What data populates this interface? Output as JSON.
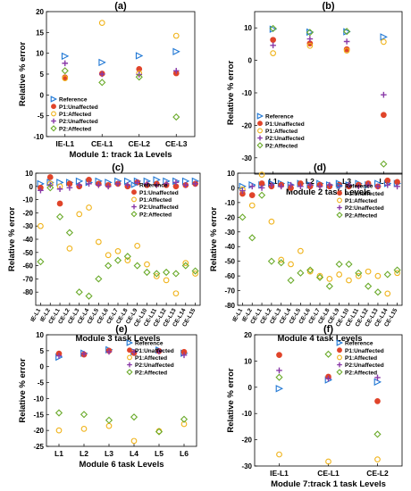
{
  "series_styles": {
    "Reference": {
      "shape": "triangle-right",
      "color": "#1f77d4",
      "fill": "none"
    },
    "P1:Unaffected": {
      "shape": "circle",
      "color": "#e0442a",
      "fill": "#e0442a"
    },
    "P1:Affected": {
      "shape": "circle",
      "color": "#f0b31a",
      "fill": "none"
    },
    "P2:Unaffected": {
      "shape": "plus",
      "color": "#8a3aa8",
      "fill": "none"
    },
    "P2:Affected": {
      "shape": "diamond",
      "color": "#6aaa2a",
      "fill": "none"
    }
  },
  "chart_data": [
    {
      "panel": "(a)",
      "type": "scatter",
      "xlabel": "Module 1: track 1a Levels",
      "ylabel": "Relative % error",
      "categories": [
        "IE-L1",
        "CE-L1",
        "CE-L2",
        "CE-L3"
      ],
      "ylim": [
        -10,
        20
      ],
      "yticks": [
        -10,
        -5,
        0,
        5,
        10,
        15,
        20
      ],
      "legend": "bottom-left",
      "tick_rotation": 0,
      "series": [
        {
          "name": "Reference",
          "values": [
            9.3,
            7.8,
            9.4,
            10.4
          ]
        },
        {
          "name": "P1:Unaffected",
          "values": [
            4.2,
            5.1,
            6.2,
            5.2
          ]
        },
        {
          "name": "P1:Affected",
          "values": [
            4.0,
            17.3,
            5.2,
            14.2
          ]
        },
        {
          "name": "P2:Unaffected",
          "values": [
            7.6,
            5.0,
            4.9,
            5.8
          ]
        },
        {
          "name": "P2:Affected",
          "values": [
            5.8,
            3.0,
            4.3,
            -5.3
          ]
        }
      ]
    },
    {
      "panel": "(b)",
      "type": "scatter",
      "xlabel": "Module 2 task Levels",
      "ylabel": "Relative % error",
      "categories": [
        "L1",
        "L2",
        "L3",
        "L4"
      ],
      "ylim": [
        -35,
        15
      ],
      "yticks": [
        -30,
        -20,
        -10,
        0,
        10
      ],
      "legend": "bottom-left",
      "tick_rotation": 0,
      "series": [
        {
          "name": "Reference",
          "values": [
            9.6,
            8.7,
            8.8,
            7.2
          ]
        },
        {
          "name": "P1:Unaffected",
          "values": [
            6.3,
            5.2,
            3.4,
            -16.8
          ]
        },
        {
          "name": "P1:Affected",
          "values": [
            2.2,
            4.5,
            3.0,
            5.7
          ]
        },
        {
          "name": "P2:Unaffected",
          "values": [
            4.6,
            6.6,
            5.8,
            -10.6
          ]
        },
        {
          "name": "P2:Affected",
          "values": [
            9.8,
            8.6,
            8.9,
            -31.9
          ]
        }
      ]
    },
    {
      "panel": "(c)",
      "type": "scatter",
      "xlabel": "Module 3 task Levels",
      "ylabel": "Relative % error",
      "categories": [
        "IE-L1",
        "IE-L2",
        "CE-L1",
        "CE-L2",
        "CE-L3",
        "CE-L4",
        "CE-L5",
        "CE-L6",
        "CE-L7",
        "CE-L8",
        "CE-L9",
        "CE-L10",
        "CE-L11",
        "CE-L12",
        "CE-L13",
        "CE-L14",
        "CE-L15"
      ],
      "ylim": [
        -90,
        10
      ],
      "yticks": [
        -80,
        -70,
        -60,
        -50,
        -40,
        -30,
        -20,
        -10,
        0,
        10
      ],
      "legend": "top-right",
      "tick_rotation": -60,
      "series": [
        {
          "name": "Reference",
          "values": [
            2,
            3,
            3,
            3,
            4,
            3,
            4,
            3,
            4,
            4,
            4,
            4,
            5,
            4,
            4,
            4,
            4
          ]
        },
        {
          "name": "P1:Unaffected",
          "values": [
            -1,
            7,
            -13,
            2,
            0,
            5,
            2,
            1,
            2,
            0,
            3,
            1,
            2,
            1,
            0,
            1,
            2
          ]
        },
        {
          "name": "P1:Affected",
          "values": [
            -30,
            2,
            0,
            -47,
            -21,
            -16,
            -42,
            -52,
            -49,
            -56,
            -45,
            -59,
            -68,
            -71,
            -81,
            -58,
            -66
          ]
        },
        {
          "name": "P2:Unaffected",
          "values": [
            -3,
            1,
            -2,
            -1,
            1,
            2,
            1,
            0,
            2,
            1,
            3,
            2,
            1,
            2,
            3,
            1,
            2
          ]
        },
        {
          "name": "P2:Affected",
          "values": [
            -57,
            -1,
            -23,
            -35,
            -80,
            -83,
            -70,
            -60,
            -56,
            -53,
            -60,
            -65,
            -66,
            -65,
            -66,
            -60,
            -64
          ]
        }
      ]
    },
    {
      "panel": "(d)",
      "type": "scatter",
      "xlabel": "Module 4 task Levels",
      "ylabel": "Relative % error",
      "categories": [
        "IE-L1",
        "IE-L2",
        "CE-L1",
        "CE-L2",
        "CE-L3",
        "CE-L4",
        "CE-L5",
        "CE-L6",
        "CE-L7",
        "CE-L8",
        "CE-L9",
        "CE-L10",
        "CE-L11",
        "CE-L12",
        "CE-L13",
        "CE-L14",
        "CE-L15"
      ],
      "ylim": [
        -80,
        10
      ],
      "yticks": [
        -80,
        -70,
        -60,
        -50,
        -40,
        -30,
        -20,
        -10,
        0,
        10
      ],
      "legend": "top-right",
      "tick_rotation": -60,
      "series": [
        {
          "name": "Reference",
          "values": [
            1,
            2,
            2,
            3,
            3,
            2,
            3,
            2,
            3,
            2,
            3,
            2,
            3,
            2,
            3,
            3,
            3
          ]
        },
        {
          "name": "P1:Unaffected",
          "values": [
            -4,
            -5,
            3,
            1,
            2,
            0,
            3,
            1,
            2,
            1,
            2,
            1,
            2,
            3,
            1,
            5,
            4
          ]
        },
        {
          "name": "P1:Affected",
          "values": [
            -1,
            -12,
            9,
            -23,
            -49,
            -52,
            -43,
            -57,
            -60,
            -62,
            -59,
            -63,
            -60,
            -57,
            -60,
            -72,
            -58
          ]
        },
        {
          "name": "P2:Unaffected",
          "values": [
            -2,
            1,
            0,
            2,
            1,
            2,
            1,
            2,
            1,
            2,
            1,
            2,
            1,
            2,
            1,
            2,
            1
          ]
        },
        {
          "name": "P2:Affected",
          "values": [
            -20,
            -34,
            -5,
            -50,
            -51,
            -63,
            -58,
            -56,
            -61,
            -67,
            -52,
            -52,
            -58,
            -67,
            -71,
            -59,
            -56
          ]
        }
      ]
    },
    {
      "panel": "(e)",
      "type": "scatter",
      "xlabel": "Module 6 task Levels",
      "ylabel": "Relative % error",
      "categories": [
        "L1",
        "L2",
        "L3",
        "L4",
        "L5",
        "L6"
      ],
      "ylim": [
        -25,
        10
      ],
      "yticks": [
        -25,
        -20,
        -15,
        -10,
        -5,
        0,
        5,
        10
      ],
      "legend": "top-right",
      "tick_rotation": 0,
      "series": [
        {
          "name": "Reference",
          "values": [
            3.0,
            4.2,
            5.3,
            4.7,
            5.2,
            4.2
          ]
        },
        {
          "name": "P1:Unaffected",
          "values": [
            4.1,
            3.8,
            5.0,
            4.3,
            4.9,
            4.6
          ]
        },
        {
          "name": "P1:Affected",
          "values": [
            -20.0,
            -19.5,
            -18.6,
            -23.3,
            -20.2,
            -18.0
          ]
        },
        {
          "name": "P2:Unaffected",
          "values": [
            3.4,
            4.0,
            4.7,
            4.6,
            4.8,
            3.6
          ]
        },
        {
          "name": "P2:Affected",
          "values": [
            -14.5,
            -15.0,
            -16.8,
            -15.8,
            -20.4,
            -16.5
          ]
        }
      ]
    },
    {
      "panel": "(f)",
      "type": "scatter",
      "xlabel": "Module 7:track 1 task Levels",
      "ylabel": "Relative % error",
      "categories": [
        "IE-L1",
        "CE-L1",
        "CE-L2"
      ],
      "ylim": [
        -30,
        20
      ],
      "yticks": [
        -30,
        -20,
        -10,
        0,
        10,
        20
      ],
      "legend": "top-right",
      "tick_rotation": 0,
      "series": [
        {
          "name": "Reference",
          "values": [
            -0.5,
            2.8,
            2.0
          ]
        },
        {
          "name": "P1:Unaffected",
          "values": [
            12.3,
            4.0,
            -5.3
          ]
        },
        {
          "name": "P1:Affected",
          "values": [
            -25.6,
            -28.3,
            -27.5
          ]
        },
        {
          "name": "P2:Unaffected",
          "values": [
            6.4,
            3.3,
            3.7
          ]
        },
        {
          "name": "P2:Affected",
          "values": [
            3.8,
            12.6,
            -17.9
          ]
        }
      ]
    }
  ]
}
